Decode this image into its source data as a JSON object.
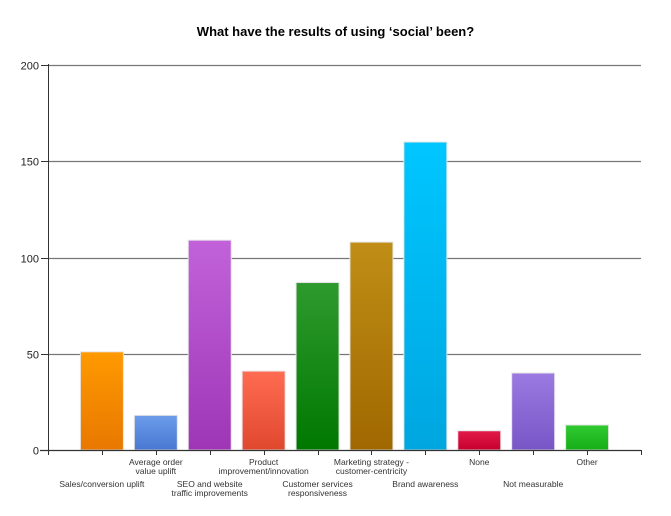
{
  "chart_data": {
    "type": "bar",
    "title": "What have the results of using ‘social’ been?",
    "xlabel": "",
    "ylabel": "",
    "ylim": [
      0,
      200
    ],
    "yticks": [
      0,
      50,
      100,
      150,
      200
    ],
    "grid": true,
    "legend": null,
    "categories": [
      "Sales/conversion uplift",
      "Average order value uplift",
      "SEO and website traffic improvements",
      "Product improvement/innovation",
      "Customer services responsiveness",
      "Marketing strategy - customer-centricity",
      "Brand awareness",
      "None",
      "Not measurable",
      "Other"
    ],
    "category_label_lines": [
      [
        "Sales/conversion uplift"
      ],
      [
        "Average order",
        "value uplift"
      ],
      [
        "SEO and website",
        "traffic improvements"
      ],
      [
        "Product",
        "improvement/innovation"
      ],
      [
        "Customer services",
        "responsiveness"
      ],
      [
        "Marketing strategy -",
        "customer-centricity"
      ],
      [
        "Brand awareness"
      ],
      [
        "None"
      ],
      [
        "Not measurable"
      ],
      [
        "Other"
      ]
    ],
    "values": [
      51,
      18,
      109,
      41,
      87,
      108,
      160,
      10,
      40,
      13
    ],
    "colors": [
      [
        "#FF9A00",
        "#E87800"
      ],
      [
        "#6C9CEA",
        "#4878D2"
      ],
      [
        "#C262DA",
        "#9E36B6"
      ],
      [
        "#FF6C52",
        "#E0482E"
      ],
      [
        "#2E9A2E",
        "#007800"
      ],
      [
        "#C08E16",
        "#A06800"
      ],
      [
        "#00C6FF",
        "#00A6E0"
      ],
      [
        "#E21A4A",
        "#C6002E"
      ],
      [
        "#9C7AE2",
        "#7856C6"
      ],
      [
        "#32CA32",
        "#16AE16"
      ]
    ]
  }
}
